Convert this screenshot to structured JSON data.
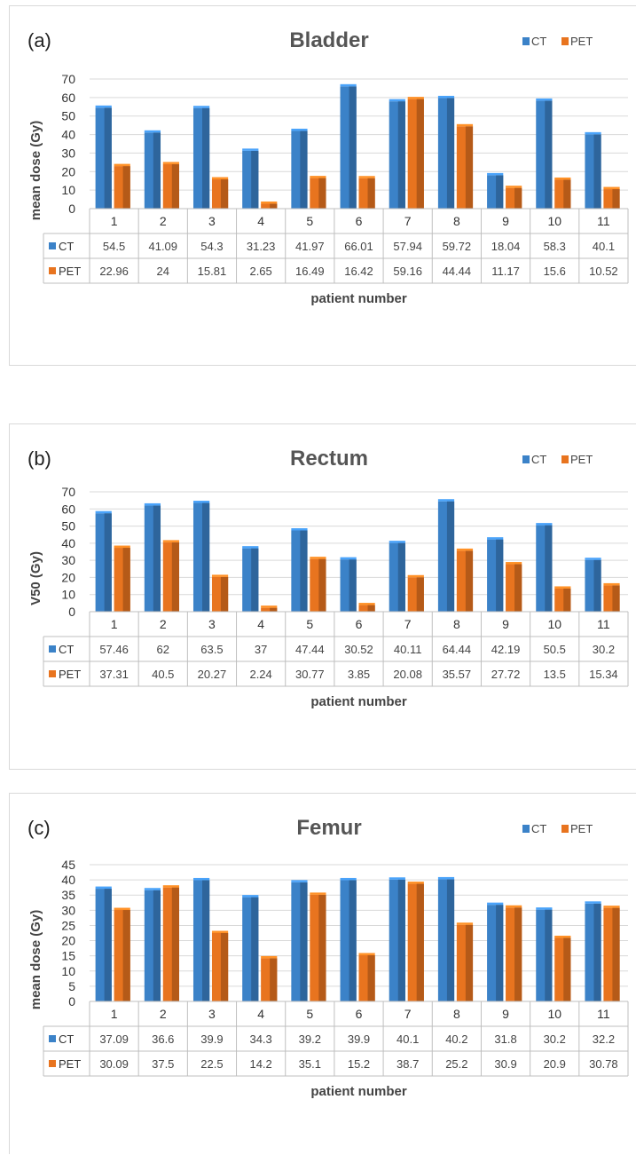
{
  "colors": {
    "ct": "#3b82c8",
    "pet": "#e8741f",
    "grid": "#d9d9d9"
  },
  "chart_data": [
    {
      "type": "bar",
      "panel_label": "(a)",
      "title": "Bladder",
      "xlabel": "patient number",
      "ylabel": "mean dose (Gy)",
      "ylim": [
        0,
        70
      ],
      "yticks": [
        0,
        10,
        20,
        30,
        40,
        50,
        60,
        70
      ],
      "grid": true,
      "legend": "top-right",
      "categories": [
        "1",
        "2",
        "3",
        "4",
        "5",
        "6",
        "7",
        "8",
        "9",
        "10",
        "11"
      ],
      "series": [
        {
          "name": "CT",
          "values": [
            54.5,
            41.09,
            54.3,
            31.23,
            41.97,
            66.01,
            57.94,
            59.72,
            18.04,
            58.3,
            40.1
          ],
          "labels": [
            "54.5",
            "41.09",
            "54.3",
            "31.23",
            "41.97",
            "66.01",
            "57.94",
            "59.72",
            "18.04",
            "58.3",
            "40.1"
          ]
        },
        {
          "name": "PET",
          "values": [
            22.96,
            24,
            15.81,
            2.65,
            16.49,
            16.42,
            59.16,
            44.44,
            11.17,
            15.6,
            10.52
          ],
          "labels": [
            "22.96",
            "24",
            "15.81",
            "2.65",
            "16.49",
            "16.42",
            "59.16",
            "44.44",
            "11.17",
            "15.6",
            "10.52"
          ]
        }
      ]
    },
    {
      "type": "bar",
      "panel_label": "(b)",
      "title": "Rectum",
      "xlabel": "patient number",
      "ylabel": "V50 (Gy)",
      "ylim": [
        0,
        70
      ],
      "yticks": [
        0,
        10,
        20,
        30,
        40,
        50,
        60,
        70
      ],
      "grid": true,
      "legend": "top-right",
      "categories": [
        "1",
        "2",
        "3",
        "4",
        "5",
        "6",
        "7",
        "8",
        "9",
        "10",
        "11"
      ],
      "series": [
        {
          "name": "CT",
          "values": [
            57.46,
            62,
            63.5,
            37,
            47.44,
            30.52,
            40.11,
            64.44,
            42.19,
            50.5,
            30.2
          ],
          "labels": [
            "57.46",
            "62",
            "63.5",
            "37",
            "47.44",
            "30.52",
            "40.11",
            "64.44",
            "42.19",
            "50.5",
            "30.2"
          ]
        },
        {
          "name": "PET",
          "values": [
            37.31,
            40.5,
            20.27,
            2.24,
            30.77,
            3.85,
            20.08,
            35.57,
            27.72,
            13.5,
            15.34
          ],
          "labels": [
            "37.31",
            "40.5",
            "20.27",
            "2.24",
            "30.77",
            "3.85",
            "20.08",
            "35.57",
            "27.72",
            "13.5",
            "15.34"
          ]
        }
      ]
    },
    {
      "type": "bar",
      "panel_label": "(c)",
      "title": "Femur",
      "xlabel": "patient number",
      "ylabel": "mean dose (Gy)",
      "ylim": [
        0,
        45
      ],
      "yticks": [
        0,
        5,
        10,
        15,
        20,
        25,
        30,
        35,
        40,
        45
      ],
      "grid": true,
      "legend": "top-right",
      "categories": [
        "1",
        "2",
        "3",
        "4",
        "5",
        "6",
        "7",
        "8",
        "9",
        "10",
        "11"
      ],
      "series": [
        {
          "name": "CT",
          "values": [
            37.09,
            36.6,
            39.9,
            34.3,
            39.2,
            39.9,
            40.1,
            40.2,
            31.8,
            30.2,
            32.2
          ],
          "labels": [
            "37.09",
            "36.6",
            "39.9",
            "34.3",
            "39.2",
            "39.9",
            "40.1",
            "40.2",
            "31.8",
            "30.2",
            "32.2"
          ]
        },
        {
          "name": "PET",
          "values": [
            30.09,
            37.5,
            22.5,
            14.2,
            35.1,
            15.2,
            38.7,
            25.2,
            30.9,
            20.9,
            30.78
          ],
          "labels": [
            "30.09",
            "37.5",
            "22.5",
            "14.2",
            "35.1",
            "15.2",
            "38.7",
            "25.2",
            "30.9",
            "20.9",
            "30.78"
          ]
        }
      ]
    }
  ]
}
